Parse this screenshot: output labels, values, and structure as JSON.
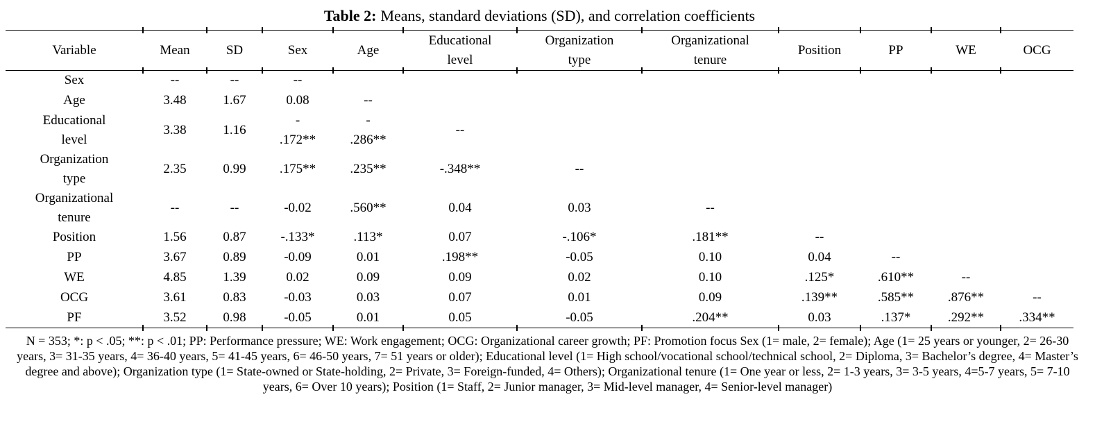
{
  "title": {
    "number": "Table 2:",
    "caption": "Means, standard deviations (SD), and correlation coefficients"
  },
  "table": {
    "columns": [
      "Variable",
      "Mean",
      "SD",
      "Sex",
      "Age",
      "Educational\nlevel",
      "Organization\ntype",
      "Organizational\ntenure",
      "Position",
      "PP",
      "WE",
      "OCG"
    ],
    "rows": [
      {
        "variable": "Sex",
        "cells": [
          "--",
          "--",
          "--",
          "",
          "",
          "",
          "",
          "",
          "",
          "",
          ""
        ]
      },
      {
        "variable": "Age",
        "cells": [
          "3.48",
          "1.67",
          "0.08",
          "--",
          "",
          "",
          "",
          "",
          "",
          "",
          ""
        ]
      },
      {
        "variable": "Educational\nlevel",
        "cells": [
          "3.38",
          "1.16",
          "-\n.172**",
          "-\n.286**",
          "--",
          "",
          "",
          "",
          "",
          "",
          ""
        ]
      },
      {
        "variable": "Organization\ntype",
        "cells": [
          "2.35",
          "0.99",
          ".175**",
          ".235**",
          "-.348**",
          "--",
          "",
          "",
          "",
          "",
          ""
        ]
      },
      {
        "variable": "Organizational\ntenure",
        "cells": [
          "--",
          "--",
          "-0.02",
          ".560**",
          "0.04",
          "0.03",
          "--",
          "",
          "",
          "",
          ""
        ]
      },
      {
        "variable": "Position",
        "cells": [
          "1.56",
          "0.87",
          "-.133*",
          ".113*",
          "0.07",
          "-.106*",
          ".181**",
          "--",
          "",
          "",
          ""
        ]
      },
      {
        "variable": "PP",
        "cells": [
          "3.67",
          "0.89",
          "-0.09",
          "0.01",
          ".198**",
          "-0.05",
          "0.10",
          "0.04",
          "--",
          "",
          ""
        ]
      },
      {
        "variable": "WE",
        "cells": [
          "4.85",
          "1.39",
          "0.02",
          "0.09",
          "0.09",
          "0.02",
          "0.10",
          ".125*",
          ".610**",
          "--",
          ""
        ]
      },
      {
        "variable": "OCG",
        "cells": [
          "3.61",
          "0.83",
          "-0.03",
          "0.03",
          "0.07",
          "0.01",
          "0.09",
          ".139**",
          ".585**",
          ".876**",
          "--"
        ]
      },
      {
        "variable": "PF",
        "cells": [
          "3.52",
          "0.98",
          "-0.05",
          "0.01",
          "0.05",
          "-0.05",
          ".204**",
          "0.03",
          ".137*",
          ".292**",
          ".334**"
        ]
      }
    ]
  },
  "footnote": {
    "text": "N = 353; *: p < .05; **: p < .01; PP: Performance pressure; WE: Work engagement; OCG: Organizational career growth; PF: Promotion focus Sex (1= male, 2= female); Age (1= 25 years or younger, 2= 26-30 years, 3= 31-35 years, 4= 36-40 years, 5= 41-45 years, 6= 46-50 years, 7= 51 years or older); Educational level (1= High school/vocational school/technical school, 2= Diploma, 3= Bachelor’s degree, 4= Master’s degree and above); Organization type (1= State-owned or State-holding, 2= Private, 3= Foreign-funded, 4= Others); Organizational tenure (1= One year or less, 2= 1-3 years, 3= 3-5 years, 4=5-7 years, 5= 7-10 years, 6= Over 10 years); Position (1= Staff, 2= Junior manager, 3= Mid-level manager, 4= Senior-level manager)"
  }
}
